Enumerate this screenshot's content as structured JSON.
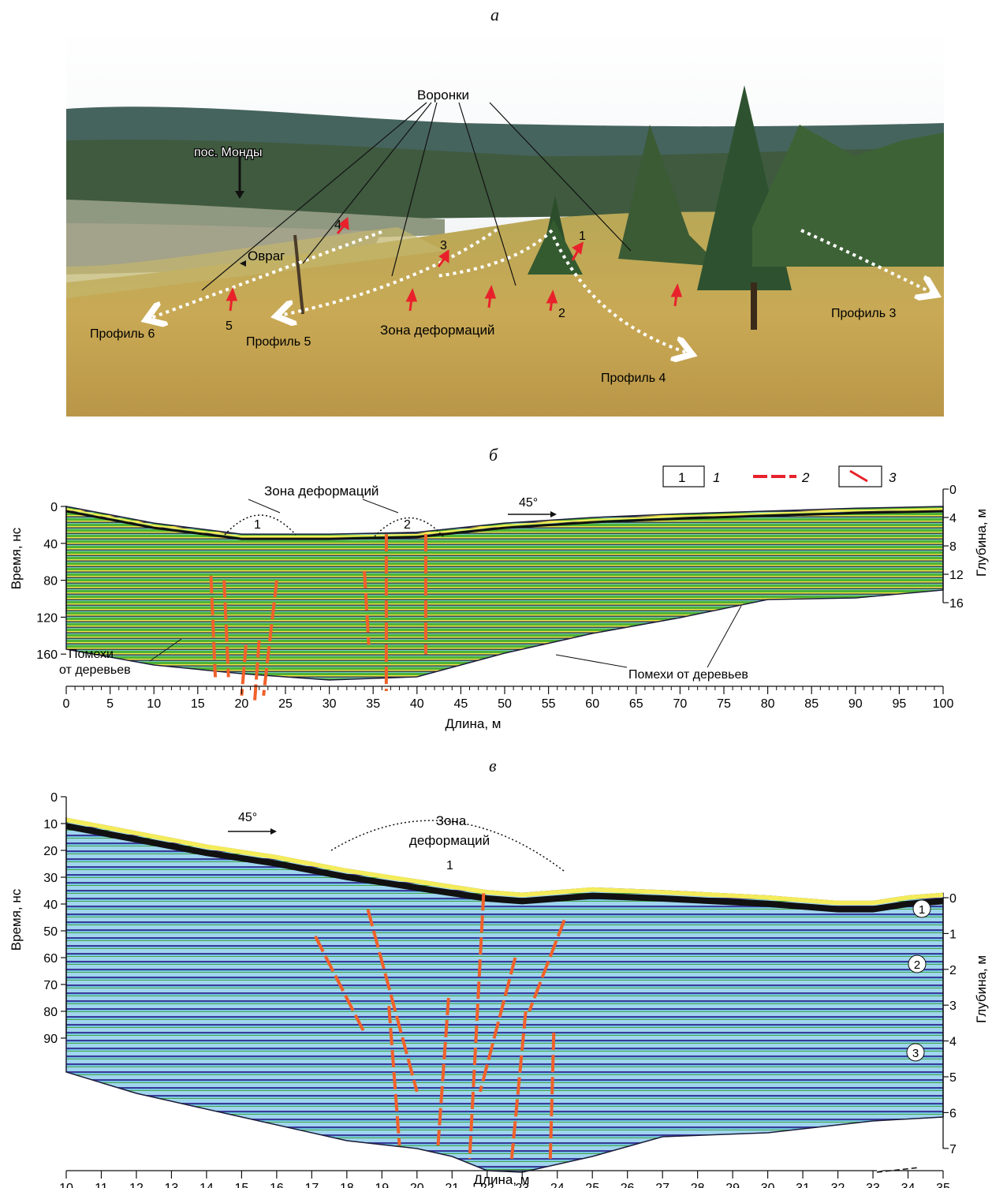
{
  "panel_a": {
    "letter": "а",
    "funnels_label": "Воронки",
    "village_label": "пос. Монды",
    "ravine_label": "Овраг",
    "deformation_zone_label": "Зона  деформаций",
    "profiles": [
      "Профиль 3",
      "Профиль 4",
      "Профиль 5",
      "Профиль 6"
    ],
    "markers": [
      "1",
      "2",
      "3",
      "4",
      "5"
    ]
  },
  "panel_b": {
    "letter": "б",
    "legend": {
      "box_text": "1",
      "labels": [
        "1",
        "2",
        "3"
      ]
    },
    "deformation_zone_label": "Зона деформаций",
    "zones": [
      "1",
      "2"
    ],
    "direction_label": "45°",
    "tree_noise_left": [
      "Помехи",
      "от деревьев"
    ],
    "tree_noise_right": "Помехи от деревьев",
    "chart_data": {
      "type": "radargram",
      "xlabel": "Длина, м",
      "ylabel_left": "Время, нс",
      "ylabel_right": "Глубина, м",
      "x_ticks": [
        "0",
        "5",
        "10",
        "15",
        "20",
        "25",
        "30",
        "35",
        "40",
        "45",
        "50",
        "55",
        "60",
        "65",
        "70",
        "75",
        "80",
        "85",
        "90",
        "95",
        "100"
      ],
      "y_left_ticks": [
        "0",
        "40",
        "80",
        "120",
        "160"
      ],
      "y_right_ticks": [
        "0",
        "4",
        "8",
        "12",
        "16"
      ],
      "xlim": [
        0,
        100
      ],
      "ylim_time": [
        0,
        200
      ],
      "surface": [
        [
          0,
          0
        ],
        [
          10,
          18
        ],
        [
          20,
          30
        ],
        [
          30,
          30
        ],
        [
          40,
          28
        ],
        [
          50,
          18
        ],
        [
          60,
          12
        ],
        [
          70,
          8
        ],
        [
          80,
          5
        ],
        [
          90,
          2
        ],
        [
          100,
          0
        ]
      ],
      "fault_lines": [
        [
          [
            16.5,
            75
          ],
          [
            17,
            185
          ]
        ],
        [
          [
            18,
            80
          ],
          [
            18.5,
            185
          ]
        ],
        [
          [
            20.5,
            150
          ],
          [
            20,
            205
          ]
        ],
        [
          [
            22,
            145
          ],
          [
            21.5,
            210
          ]
        ],
        [
          [
            24,
            80
          ],
          [
            22.5,
            205
          ]
        ],
        [
          [
            36.5,
            30
          ],
          [
            36.5,
            200
          ]
        ],
        [
          [
            41,
            30
          ],
          [
            41,
            160
          ]
        ],
        [
          [
            34,
            70
          ],
          [
            34.5,
            150
          ]
        ]
      ]
    }
  },
  "panel_c": {
    "letter": "в",
    "deformation_zone_label": [
      "Зона",
      "деформаций"
    ],
    "zone_number": "1",
    "direction_label": "45°",
    "layers": [
      "1",
      "2",
      "3"
    ],
    "chart_data": {
      "type": "radargram",
      "xlabel": "Длина, м",
      "ylabel_left": "Время, нс",
      "ylabel_right": "Глубина, м",
      "x_ticks": [
        "10",
        "11",
        "12",
        "13",
        "14",
        "15",
        "16",
        "17",
        "18",
        "19",
        "20",
        "21",
        "22",
        "23",
        "24",
        "25",
        "26",
        "27",
        "28",
        "29",
        "30",
        "31",
        "32",
        "33",
        "34",
        "35"
      ],
      "y_left_ticks": [
        "0",
        "10",
        "20",
        "30",
        "40",
        "50",
        "60",
        "70",
        "80",
        "90"
      ],
      "y_right_ticks": [
        "0",
        "1",
        "2",
        "3",
        "4",
        "5",
        "6",
        "7"
      ],
      "xlim": [
        10,
        35
      ],
      "ylim_time": [
        0,
        140
      ],
      "surface": [
        [
          10,
          8
        ],
        [
          12,
          13
        ],
        [
          14,
          18
        ],
        [
          16,
          22
        ],
        [
          18,
          27
        ],
        [
          20,
          31
        ],
        [
          22,
          35
        ],
        [
          23,
          36
        ],
        [
          24,
          35
        ],
        [
          25,
          34
        ],
        [
          27,
          35
        ],
        [
          30,
          37
        ],
        [
          32,
          39
        ],
        [
          33,
          39
        ],
        [
          34,
          37
        ],
        [
          35,
          36
        ]
      ],
      "fault_lines": [
        [
          [
            17.1,
            52
          ],
          [
            18.5,
            88
          ]
        ],
        [
          [
            18.6,
            42
          ],
          [
            20,
            110
          ]
        ],
        [
          [
            19.2,
            78
          ],
          [
            19.5,
            130
          ]
        ],
        [
          [
            21.9,
            36
          ],
          [
            21.5,
            135
          ]
        ],
        [
          [
            20.9,
            75
          ],
          [
            20.6,
            130
          ]
        ],
        [
          [
            22.8,
            60
          ],
          [
            21.8,
            110
          ]
        ],
        [
          [
            24.2,
            46
          ],
          [
            23.2,
            80
          ]
        ],
        [
          [
            23.1,
            80
          ],
          [
            22.7,
            135
          ]
        ],
        [
          [
            23.9,
            88
          ],
          [
            23.8,
            135
          ]
        ]
      ]
    }
  }
}
